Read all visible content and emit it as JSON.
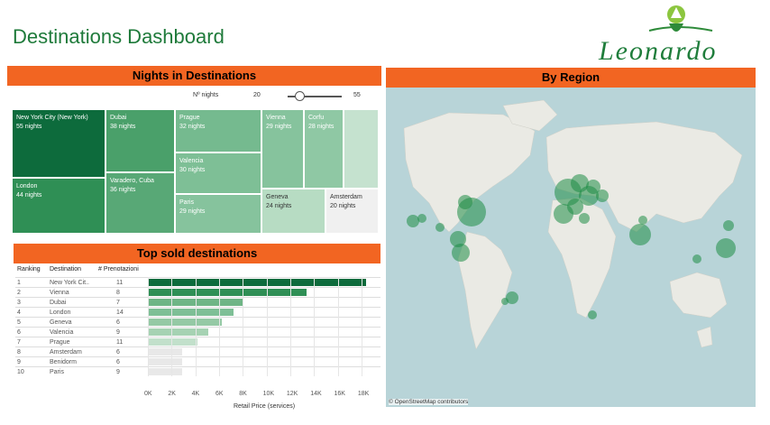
{
  "title": "Destinations Dashboard",
  "logo": {
    "text": "Leonardo",
    "icon": "leonardo-logo-icon",
    "color": "#1f7d3b"
  },
  "nights": {
    "header": "Nights in Destinations",
    "slider": {
      "label": "Nº nights",
      "min": "20",
      "max": "55",
      "value": 20
    },
    "tiles": [
      {
        "name": "New York City (New York)",
        "value": "55 nights",
        "color": "#0d6b3c",
        "text": "#ffffff"
      },
      {
        "name": "London",
        "value": "44 nights",
        "color": "#2f8f55",
        "text": "#ffffff"
      },
      {
        "name": "Dubai",
        "value": "38 nights",
        "color": "#4aa06a",
        "text": "#ffffff"
      },
      {
        "name": "Varadero, Cuba",
        "value": "36 nights",
        "color": "#58a876",
        "text": "#ffffff"
      },
      {
        "name": "Prague",
        "value": "32 nights",
        "color": "#75ba8f",
        "text": "#ffffff"
      },
      {
        "name": "Valencia",
        "value": "30 nights",
        "color": "#7ebf96",
        "text": "#ffffff"
      },
      {
        "name": "Paris",
        "value": "29 nights",
        "color": "#86c39d",
        "text": "#ffffff"
      },
      {
        "name": "Vienna",
        "value": "29 nights",
        "color": "#86c39d",
        "text": "#ffffff"
      },
      {
        "name": "Corfu",
        "value": "28 nights",
        "color": "#8fc8a4",
        "text": "#ffffff"
      },
      {
        "name": "Geneva",
        "value": "24 nights",
        "color": "#b7dcc3",
        "text": "#333333"
      },
      {
        "name": "Amsterdam",
        "value": "20 nights",
        "color": "#f0f0f0",
        "text": "#333333"
      }
    ]
  },
  "region": {
    "header": "By Region",
    "credit": "© OpenStreetMap contributors"
  },
  "sold": {
    "header": "Top sold destinations",
    "columns": {
      "ranking": "Ranking",
      "destination": "Destination",
      "count": "# Prenotazioni"
    },
    "axis_title": "Retail Price (services)"
  },
  "chart_data": {
    "type": "bar",
    "categories": [
      "New York Cit..",
      "Vienna",
      "Dubai",
      "London",
      "Geneva",
      "Valencia",
      "Prague",
      "Amsterdam",
      "Benidorm",
      "Paris"
    ],
    "ranks": [
      "1",
      "2",
      "3",
      "4",
      "5",
      "6",
      "7",
      "8",
      "9",
      "10"
    ],
    "counts": [
      "11",
      "8",
      "7",
      "14",
      "6",
      "9",
      "11",
      "6",
      "6",
      "9"
    ],
    "values": [
      18400,
      13400,
      8000,
      7200,
      6200,
      5100,
      4200,
      2900,
      2900,
      2900
    ],
    "colors": [
      "#0d6b3c",
      "#2f8f55",
      "#6fb586",
      "#7ebf96",
      "#95c9a5",
      "#a6d2b3",
      "#c2e0cb",
      "#e8e8e8",
      "#e8e8e8",
      "#e8e8e8"
    ],
    "xlabel": "Retail Price (services)",
    "xlim": [
      0,
      19000
    ],
    "ticks": [
      0,
      2000,
      4000,
      6000,
      8000,
      10000,
      12000,
      14000,
      16000,
      18000
    ],
    "tick_labels": [
      "0K",
      "2K",
      "4K",
      "6K",
      "8K",
      "10K",
      "12K",
      "14K",
      "16K",
      "18K"
    ]
  }
}
